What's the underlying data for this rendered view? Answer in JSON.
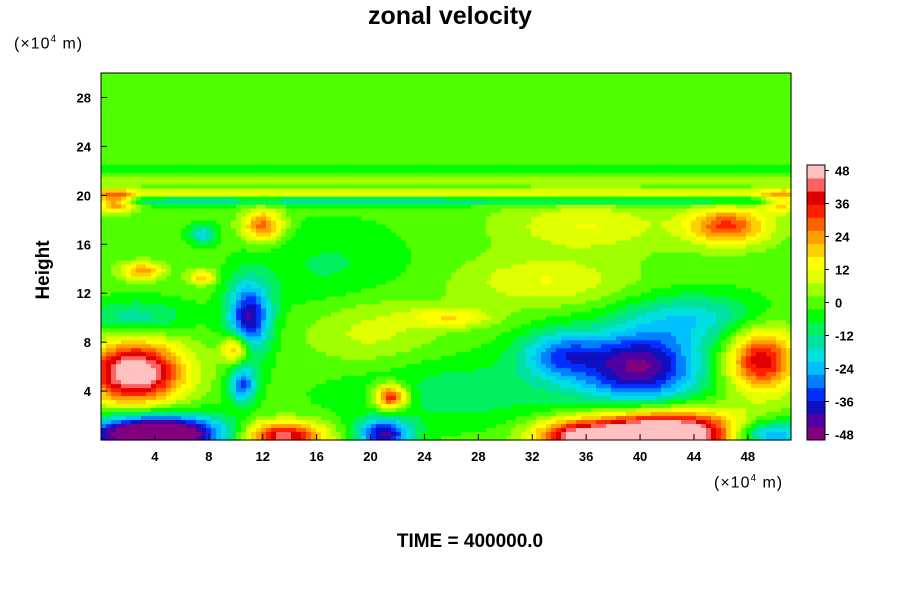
{
  "chart_data": {
    "type": "heatmap",
    "title": "zonal velocity",
    "ylabel": "Height",
    "xlabel": "",
    "x_unit": {
      "prefix": "(×10",
      "exp": "4",
      "suffix": " m)"
    },
    "y_unit": {
      "prefix": "(×10",
      "exp": "4",
      "suffix": " m)"
    },
    "xlim": [
      0,
      51.2
    ],
    "ylim": [
      0,
      30
    ],
    "x_ticks": [
      4,
      8,
      12,
      16,
      20,
      24,
      28,
      32,
      36,
      40,
      44,
      48
    ],
    "y_ticks": [
      4,
      8,
      12,
      16,
      20,
      24,
      28
    ],
    "colorbar": {
      "range": [
        -50,
        50
      ],
      "tick_labels": [
        48,
        36,
        24,
        12,
        0,
        -12,
        -24,
        -36,
        -48
      ],
      "colors": [
        "#800080",
        "#5000a0",
        "#1010c0",
        "#0030ff",
        "#0080ff",
        "#00c0ff",
        "#00e0e0",
        "#00e0a0",
        "#00f060",
        "#00ff00",
        "#50ff00",
        "#a0ff00",
        "#e0ff00",
        "#ffff00",
        "#ffd000",
        "#ffa000",
        "#ff6000",
        "#ff2000",
        "#e00000",
        "#ff6060",
        "#ffc0c0"
      ]
    },
    "features": [
      {
        "x": 2.5,
        "y": 5.5,
        "value": 55,
        "sx": 3.5,
        "sy": 2.5
      },
      {
        "x": 4,
        "y": 0.5,
        "value": -70,
        "sx": 5,
        "sy": 1.5
      },
      {
        "x": 13.5,
        "y": 0.3,
        "value": 45,
        "sx": 3,
        "sy": 1.2
      },
      {
        "x": 21,
        "y": 0.5,
        "value": -40,
        "sx": 2,
        "sy": 1.2
      },
      {
        "x": 41.5,
        "y": 0.5,
        "value": 70,
        "sx": 6,
        "sy": 1.8
      },
      {
        "x": 35,
        "y": 0.3,
        "value": 30,
        "sx": 3,
        "sy": 1.2
      },
      {
        "x": 49.5,
        "y": 0.4,
        "value": -35,
        "sx": 3,
        "sy": 1.2
      },
      {
        "x": 11,
        "y": 10,
        "value": -40,
        "sx": 1.6,
        "sy": 3
      },
      {
        "x": 10,
        "y": 7.5,
        "value": 30,
        "sx": 1,
        "sy": 1.2
      },
      {
        "x": 10.5,
        "y": 4.5,
        "value": -30,
        "sx": 1,
        "sy": 1.5
      },
      {
        "x": 40,
        "y": 6,
        "value": -45,
        "sx": 4.5,
        "sy": 3
      },
      {
        "x": 34,
        "y": 7,
        "value": -25,
        "sx": 3,
        "sy": 2
      },
      {
        "x": 49,
        "y": 6.5,
        "value": 40,
        "sx": 2.5,
        "sy": 2.5
      },
      {
        "x": 21.5,
        "y": 3.5,
        "value": 40,
        "sx": 1.2,
        "sy": 1
      },
      {
        "x": 1,
        "y": 19.5,
        "value": 35,
        "sx": 1.5,
        "sy": 0.8
      },
      {
        "x": 12,
        "y": 17.5,
        "value": 30,
        "sx": 1.5,
        "sy": 1.3
      },
      {
        "x": 3,
        "y": 13.8,
        "value": 25,
        "sx": 1.5,
        "sy": 0.7
      },
      {
        "x": 46.5,
        "y": 17.5,
        "value": 32,
        "sx": 3,
        "sy": 1.5
      },
      {
        "x": 50.5,
        "y": 19.5,
        "value": 25,
        "sx": 1.5,
        "sy": 0.8
      },
      {
        "x": 7.5,
        "y": 13.3,
        "value": 20,
        "sx": 1,
        "sy": 0.6
      },
      {
        "x": 7.5,
        "y": 16.8,
        "value": -20,
        "sx": 1,
        "sy": 0.8
      },
      {
        "x": 2.5,
        "y": 10,
        "value": -15,
        "sx": 4,
        "sy": 1.5
      },
      {
        "x": 26,
        "y": 10,
        "value": 15,
        "sx": 3,
        "sy": 0.8
      },
      {
        "x": 33,
        "y": 13,
        "value": 12,
        "sx": 6,
        "sy": 2
      },
      {
        "x": 36,
        "y": 17.5,
        "value": 12,
        "sx": 6,
        "sy": 2
      },
      {
        "x": 20,
        "y": 9,
        "value": 10,
        "sx": 5,
        "sy": 3
      },
      {
        "x": 27,
        "y": 4,
        "value": -10,
        "sx": 10,
        "sy": 3
      },
      {
        "x": 17,
        "y": 14,
        "value": -8,
        "sx": 6,
        "sy": 4
      },
      {
        "x": 44,
        "y": 10,
        "value": -18,
        "sx": 5,
        "sy": 2
      }
    ],
    "bands": [
      {
        "y": 20.2,
        "value": 12,
        "sy": 0.35
      },
      {
        "y": 19.5,
        "value": -14,
        "sy": 0.35
      },
      {
        "y": 21.2,
        "value": 5,
        "sy": 0.3
      },
      {
        "y": 22.2,
        "value": -4,
        "sy": 0.3
      }
    ]
  },
  "time_label": "TIME = 400000.0"
}
